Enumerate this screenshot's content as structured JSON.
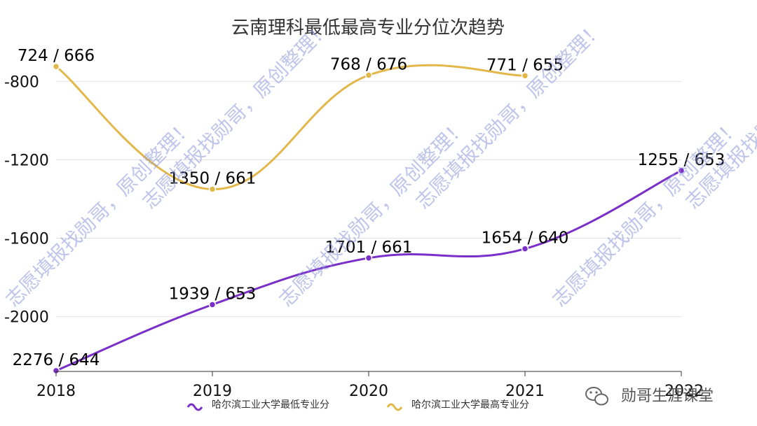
{
  "chart_data": {
    "type": "line",
    "title": "云南理科最低最高专业分位次趋势",
    "categories": [
      "2018",
      "2019",
      "2020",
      "2021",
      "2022"
    ],
    "y_ticks": [
      "-800",
      "-1200",
      "-1600",
      "-2000"
    ],
    "y_tick_values": [
      -800,
      -1200,
      -1600,
      -2000
    ],
    "ylim": [
      -2280,
      -670
    ],
    "grid": true,
    "legend_position": "bottom",
    "series": [
      {
        "name": "哈尔滨工业大学最低专业分",
        "color": "#7b2fc9",
        "values": [
          -2276,
          -1939,
          -1701,
          -1654,
          -1255
        ],
        "labels": [
          "2276 / 644",
          "1939 / 653",
          "1701 / 661",
          "1654 / 640",
          "1255 / 653"
        ]
      },
      {
        "name": "哈尔滨工业大学最高专业分",
        "color": "#e2b84a",
        "values": [
          -724,
          -1350,
          -768,
          -771,
          null
        ],
        "labels": [
          "724 / 666",
          "1350 / 661",
          "768 / 676",
          "771 / 655",
          null
        ]
      }
    ]
  },
  "watermark": {
    "text": "志愿填报找勋哥，原创整理！",
    "brand": "勋哥生涯课堂"
  }
}
